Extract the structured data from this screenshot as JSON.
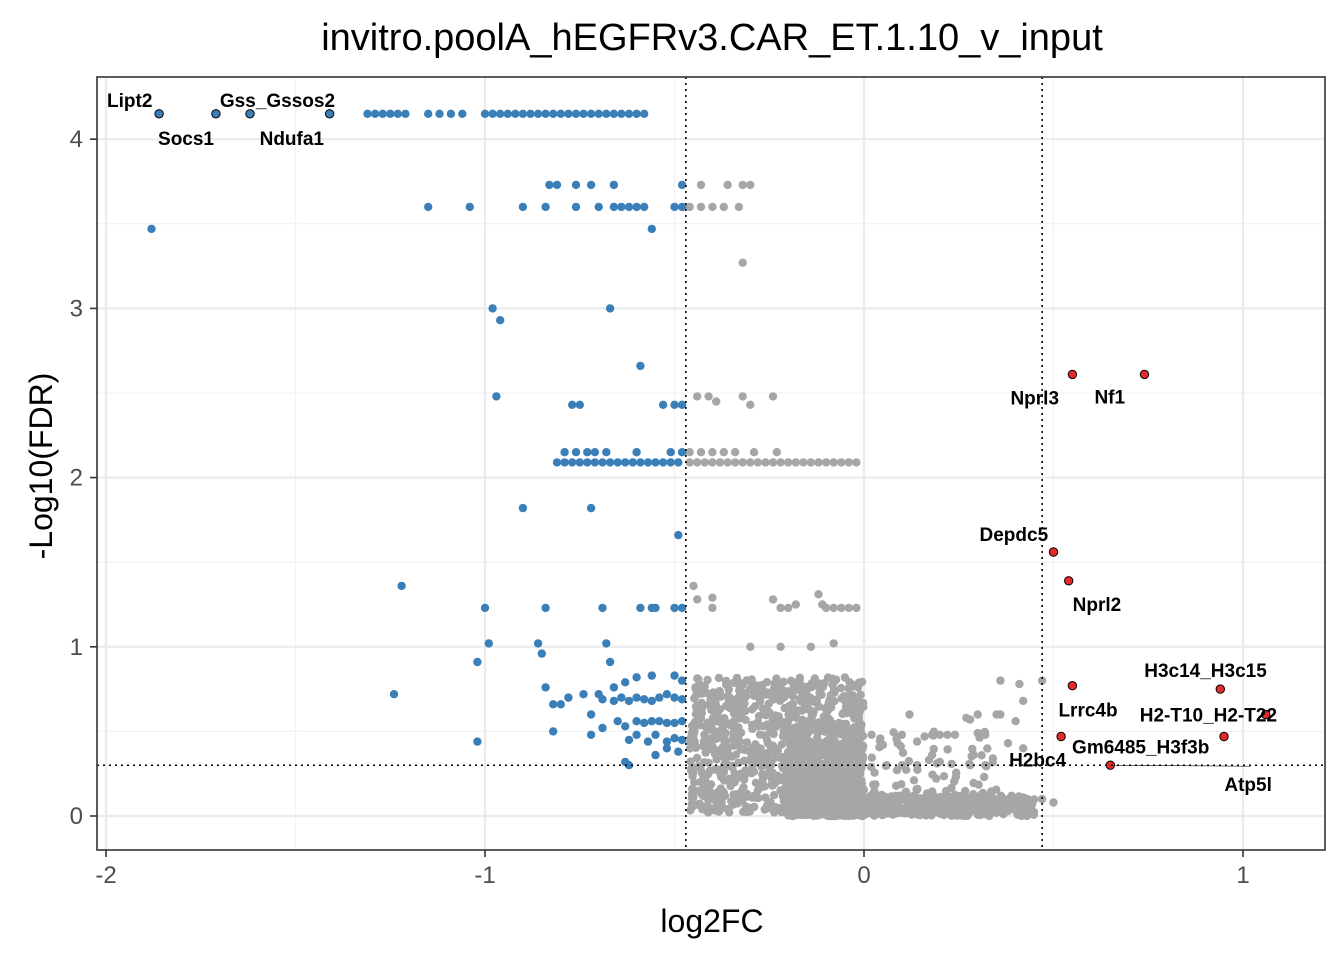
{
  "chart_data": {
    "type": "scatter",
    "title": "invitro.poolA_hEGFRv3.CAR_ET.1.10_v_input",
    "xlabel": "log2FC",
    "ylabel": "-Log10(FDR)",
    "xlim": [
      -2.02,
      1.22
    ],
    "ylim": [
      -0.2,
      4.3
    ],
    "xticks": [
      -2,
      -1,
      0,
      1
    ],
    "yticks": [
      0,
      1,
      2,
      3,
      4
    ],
    "grid": true,
    "thresholds": {
      "log2fc_low": -0.47,
      "log2fc_high": 0.47,
      "neg_log10_fdr": 0.3
    },
    "colors": {
      "down": "#3a7fb8",
      "up": "#e8292a",
      "ns": "#a6a6a6"
    },
    "labels": [
      {
        "text": "Lipt2",
        "x": -1.86,
        "y": 4.15
      },
      {
        "text": "Gss_Gssos2",
        "x": -1.71,
        "y": 4.15
      },
      {
        "text": "Socs1",
        "x": -1.62,
        "y": 4.15
      },
      {
        "text": "Ndufa1",
        "x": -1.41,
        "y": 4.15
      },
      {
        "text": "Nprl3",
        "x": 0.55,
        "y": 2.61
      },
      {
        "text": "Nf1",
        "x": 0.74,
        "y": 2.61
      },
      {
        "text": "Depdc5",
        "x": 0.5,
        "y": 1.56
      },
      {
        "text": "Nprl2",
        "x": 0.54,
        "y": 1.39
      },
      {
        "text": "H3c14_H3c15",
        "x": 0.94,
        "y": 0.75
      },
      {
        "text": "Lrrc4b",
        "x": 0.55,
        "y": 0.77
      },
      {
        "text": "H2-T10_H2-T22",
        "x": 1.06,
        "y": 0.6
      },
      {
        "text": "Gm6485_H3f3b",
        "x": 0.95,
        "y": 0.47
      },
      {
        "text": "H2bc4",
        "x": 0.52,
        "y": 0.47
      },
      {
        "text": "Atp5l",
        "x": 0.65,
        "y": 0.3
      }
    ],
    "series": [
      {
        "name": "down",
        "points": [
          [
            -1.86,
            4.15
          ],
          [
            -1.71,
            4.15
          ],
          [
            -1.62,
            4.15
          ],
          [
            -1.41,
            4.15
          ],
          [
            -1.31,
            4.15
          ],
          [
            -1.29,
            4.15
          ],
          [
            -1.27,
            4.15
          ],
          [
            -1.25,
            4.15
          ],
          [
            -1.23,
            4.15
          ],
          [
            -1.21,
            4.15
          ],
          [
            -1.15,
            4.15
          ],
          [
            -1.12,
            4.15
          ],
          [
            -1.09,
            4.15
          ],
          [
            -1.06,
            4.15
          ],
          [
            -1.0,
            4.15
          ],
          [
            -0.98,
            4.15
          ],
          [
            -0.96,
            4.15
          ],
          [
            -0.94,
            4.15
          ],
          [
            -0.92,
            4.15
          ],
          [
            -0.9,
            4.15
          ],
          [
            -0.88,
            4.15
          ],
          [
            -0.86,
            4.15
          ],
          [
            -0.84,
            4.15
          ],
          [
            -0.82,
            4.15
          ],
          [
            -0.8,
            4.15
          ],
          [
            -0.78,
            4.15
          ],
          [
            -0.76,
            4.15
          ],
          [
            -0.74,
            4.15
          ],
          [
            -0.72,
            4.15
          ],
          [
            -0.7,
            4.15
          ],
          [
            -0.68,
            4.15
          ],
          [
            -0.66,
            4.15
          ],
          [
            -0.64,
            4.15
          ],
          [
            -0.62,
            4.15
          ],
          [
            -0.6,
            4.15
          ],
          [
            -0.58,
            4.15
          ],
          [
            -0.83,
            3.73
          ],
          [
            -0.81,
            3.73
          ],
          [
            -0.76,
            3.73
          ],
          [
            -0.72,
            3.73
          ],
          [
            -0.66,
            3.73
          ],
          [
            -0.48,
            3.73
          ],
          [
            -1.15,
            3.6
          ],
          [
            -1.04,
            3.6
          ],
          [
            -0.9,
            3.6
          ],
          [
            -0.84,
            3.6
          ],
          [
            -0.76,
            3.6
          ],
          [
            -0.7,
            3.6
          ],
          [
            -0.66,
            3.6
          ],
          [
            -0.64,
            3.6
          ],
          [
            -0.62,
            3.6
          ],
          [
            -0.6,
            3.6
          ],
          [
            -0.58,
            3.6
          ],
          [
            -0.5,
            3.6
          ],
          [
            -0.48,
            3.6
          ],
          [
            -1.88,
            3.47
          ],
          [
            -0.56,
            3.47
          ],
          [
            -0.98,
            3.0
          ],
          [
            -0.96,
            2.93
          ],
          [
            -0.67,
            3.0
          ],
          [
            -0.59,
            2.66
          ],
          [
            -0.97,
            2.48
          ],
          [
            -0.77,
            2.43
          ],
          [
            -0.75,
            2.43
          ],
          [
            -0.53,
            2.43
          ],
          [
            -0.5,
            2.43
          ],
          [
            -0.48,
            2.43
          ],
          [
            -0.79,
            2.15
          ],
          [
            -0.76,
            2.15
          ],
          [
            -0.73,
            2.15
          ],
          [
            -0.71,
            2.15
          ],
          [
            -0.68,
            2.15
          ],
          [
            -0.6,
            2.15
          ],
          [
            -0.51,
            2.15
          ],
          [
            -0.48,
            2.15
          ],
          [
            -0.81,
            2.09
          ],
          [
            -0.79,
            2.09
          ],
          [
            -0.77,
            2.09
          ],
          [
            -0.75,
            2.09
          ],
          [
            -0.73,
            2.09
          ],
          [
            -0.71,
            2.09
          ],
          [
            -0.69,
            2.09
          ],
          [
            -0.67,
            2.09
          ],
          [
            -0.65,
            2.09
          ],
          [
            -0.63,
            2.09
          ],
          [
            -0.61,
            2.09
          ],
          [
            -0.59,
            2.09
          ],
          [
            -0.57,
            2.09
          ],
          [
            -0.55,
            2.09
          ],
          [
            -0.53,
            2.09
          ],
          [
            -0.51,
            2.09
          ],
          [
            -0.49,
            2.09
          ],
          [
            -0.9,
            1.82
          ],
          [
            -0.72,
            1.82
          ],
          [
            -0.49,
            1.66
          ],
          [
            -1.22,
            1.36
          ],
          [
            -1.0,
            1.23
          ],
          [
            -0.84,
            1.23
          ],
          [
            -0.69,
            1.23
          ],
          [
            -0.59,
            1.23
          ],
          [
            -0.56,
            1.23
          ],
          [
            -0.55,
            1.23
          ],
          [
            -0.5,
            1.23
          ],
          [
            -0.48,
            1.23
          ],
          [
            -0.99,
            1.02
          ],
          [
            -0.86,
            1.02
          ],
          [
            -0.85,
            0.96
          ],
          [
            -1.02,
            0.91
          ],
          [
            -0.68,
            1.02
          ],
          [
            -0.67,
            0.91
          ],
          [
            -1.24,
            0.72
          ],
          [
            -0.84,
            0.76
          ],
          [
            -0.8,
            0.66
          ],
          [
            -0.74,
            0.72
          ],
          [
            -0.7,
            0.72
          ],
          [
            -0.66,
            0.76
          ],
          [
            -0.63,
            0.79
          ],
          [
            -0.6,
            0.82
          ],
          [
            -0.56,
            0.83
          ],
          [
            -0.5,
            0.83
          ],
          [
            -0.48,
            0.8
          ],
          [
            -0.82,
            0.66
          ],
          [
            -0.78,
            0.7
          ],
          [
            -0.72,
            0.6
          ],
          [
            -0.69,
            0.69
          ],
          [
            -0.66,
            0.68
          ],
          [
            -0.64,
            0.7
          ],
          [
            -0.62,
            0.68
          ],
          [
            -0.6,
            0.7
          ],
          [
            -0.58,
            0.69
          ],
          [
            -0.56,
            0.68
          ],
          [
            -0.54,
            0.7
          ],
          [
            -0.52,
            0.72
          ],
          [
            -0.5,
            0.7
          ],
          [
            -0.48,
            0.69
          ],
          [
            -0.82,
            0.5
          ],
          [
            -0.69,
            0.52
          ],
          [
            -0.65,
            0.56
          ],
          [
            -0.63,
            0.53
          ],
          [
            -0.6,
            0.56
          ],
          [
            -0.58,
            0.55
          ],
          [
            -0.56,
            0.56
          ],
          [
            -0.54,
            0.56
          ],
          [
            -0.52,
            0.55
          ],
          [
            -0.5,
            0.55
          ],
          [
            -0.48,
            0.56
          ],
          [
            -1.02,
            0.44
          ],
          [
            -0.72,
            0.48
          ],
          [
            -0.62,
            0.45
          ],
          [
            -0.6,
            0.48
          ],
          [
            -0.57,
            0.44
          ],
          [
            -0.55,
            0.48
          ],
          [
            -0.52,
            0.44
          ],
          [
            -0.5,
            0.46
          ],
          [
            -0.48,
            0.45
          ],
          [
            -0.62,
            0.3
          ],
          [
            -0.63,
            0.32
          ],
          [
            -0.55,
            0.36
          ],
          [
            -0.52,
            0.4
          ],
          [
            -0.49,
            0.38
          ]
        ]
      },
      {
        "name": "up",
        "points": [
          [
            0.55,
            2.61
          ],
          [
            0.74,
            2.61
          ],
          [
            0.5,
            1.56
          ],
          [
            0.54,
            1.39
          ],
          [
            0.94,
            0.75
          ],
          [
            0.55,
            0.77
          ],
          [
            1.06,
            0.6
          ],
          [
            0.95,
            0.47
          ],
          [
            0.52,
            0.47
          ],
          [
            0.65,
            0.3
          ]
        ]
      }
    ],
    "ns_clouds": [
      {
        "x": [
          -0.46,
          0.0
        ],
        "y": [
          0.02,
          0.82
        ],
        "n": 900,
        "skew": 1.0
      },
      {
        "x": [
          -0.2,
          0.0
        ],
        "y": [
          0.0,
          0.55
        ],
        "n": 500,
        "skew": 1.8
      },
      {
        "x": [
          0.0,
          0.45
        ],
        "y": [
          0.0,
          0.12
        ],
        "n": 330,
        "skew": 1.0
      },
      {
        "x": [
          0.0,
          0.35
        ],
        "y": [
          0.12,
          0.5
        ],
        "n": 70,
        "skew": 1.5
      }
    ],
    "ns_points": [
      [
        -0.43,
        3.73
      ],
      [
        -0.36,
        3.73
      ],
      [
        -0.32,
        3.73
      ],
      [
        -0.3,
        3.73
      ],
      [
        -0.46,
        3.6
      ],
      [
        -0.43,
        3.6
      ],
      [
        -0.4,
        3.6
      ],
      [
        -0.37,
        3.6
      ],
      [
        -0.33,
        3.6
      ],
      [
        -0.32,
        3.27
      ],
      [
        -0.44,
        2.48
      ],
      [
        -0.41,
        2.48
      ],
      [
        -0.39,
        2.45
      ],
      [
        -0.32,
        2.48
      ],
      [
        -0.24,
        2.48
      ],
      [
        -0.3,
        2.43
      ],
      [
        -0.46,
        2.15
      ],
      [
        -0.43,
        2.15
      ],
      [
        -0.4,
        2.15
      ],
      [
        -0.37,
        2.15
      ],
      [
        -0.34,
        2.15
      ],
      [
        -0.29,
        2.15
      ],
      [
        -0.23,
        2.15
      ],
      [
        -0.46,
        2.09
      ],
      [
        -0.44,
        2.09
      ],
      [
        -0.42,
        2.09
      ],
      [
        -0.4,
        2.09
      ],
      [
        -0.38,
        2.09
      ],
      [
        -0.36,
        2.09
      ],
      [
        -0.34,
        2.09
      ],
      [
        -0.32,
        2.09
      ],
      [
        -0.3,
        2.09
      ],
      [
        -0.28,
        2.09
      ],
      [
        -0.26,
        2.09
      ],
      [
        -0.24,
        2.09
      ],
      [
        -0.22,
        2.09
      ],
      [
        -0.2,
        2.09
      ],
      [
        -0.18,
        2.09
      ],
      [
        -0.16,
        2.09
      ],
      [
        -0.14,
        2.09
      ],
      [
        -0.12,
        2.09
      ],
      [
        -0.1,
        2.09
      ],
      [
        -0.08,
        2.09
      ],
      [
        -0.06,
        2.09
      ],
      [
        -0.04,
        2.09
      ],
      [
        -0.02,
        2.09
      ],
      [
        -0.45,
        1.36
      ],
      [
        -0.44,
        1.28
      ],
      [
        -0.4,
        1.23
      ],
      [
        -0.4,
        1.29
      ],
      [
        -0.24,
        1.28
      ],
      [
        -0.22,
        1.23
      ],
      [
        -0.2,
        1.23
      ],
      [
        -0.18,
        1.25
      ],
      [
        -0.12,
        1.31
      ],
      [
        -0.11,
        1.25
      ],
      [
        -0.1,
        1.23
      ],
      [
        -0.08,
        1.23
      ],
      [
        -0.06,
        1.23
      ],
      [
        -0.04,
        1.23
      ],
      [
        -0.02,
        1.23
      ],
      [
        -0.3,
        1.0
      ],
      [
        -0.22,
        1.0
      ],
      [
        -0.14,
        1.0
      ],
      [
        -0.08,
        1.02
      ],
      [
        0.02,
        0.48
      ],
      [
        0.05,
        0.42
      ],
      [
        0.1,
        0.48
      ],
      [
        0.12,
        0.6
      ],
      [
        0.14,
        0.44
      ],
      [
        0.16,
        0.47
      ],
      [
        0.2,
        0.48
      ],
      [
        0.24,
        0.48
      ],
      [
        0.27,
        0.58
      ],
      [
        0.28,
        0.57
      ],
      [
        0.3,
        0.6
      ],
      [
        0.32,
        0.48
      ],
      [
        0.35,
        0.6
      ],
      [
        0.36,
        0.6
      ],
      [
        0.36,
        0.8
      ],
      [
        0.4,
        0.56
      ],
      [
        0.41,
        0.78
      ],
      [
        0.42,
        0.68
      ],
      [
        0.47,
        0.8
      ],
      [
        0.3,
        0.49
      ],
      [
        0.22,
        0.48
      ],
      [
        0.18,
        0.48
      ],
      [
        0.1,
        0.3
      ],
      [
        0.38,
        0.43
      ],
      [
        0.32,
        0.3
      ],
      [
        0.47,
        0.1
      ],
      [
        0.5,
        0.08
      ],
      [
        0.42,
        0.4
      ],
      [
        0.28,
        0.3
      ],
      [
        0.34,
        0.34
      ],
      [
        0.06,
        0.3
      ],
      [
        0.14,
        0.3
      ],
      [
        0.2,
        0.32
      ]
    ]
  }
}
